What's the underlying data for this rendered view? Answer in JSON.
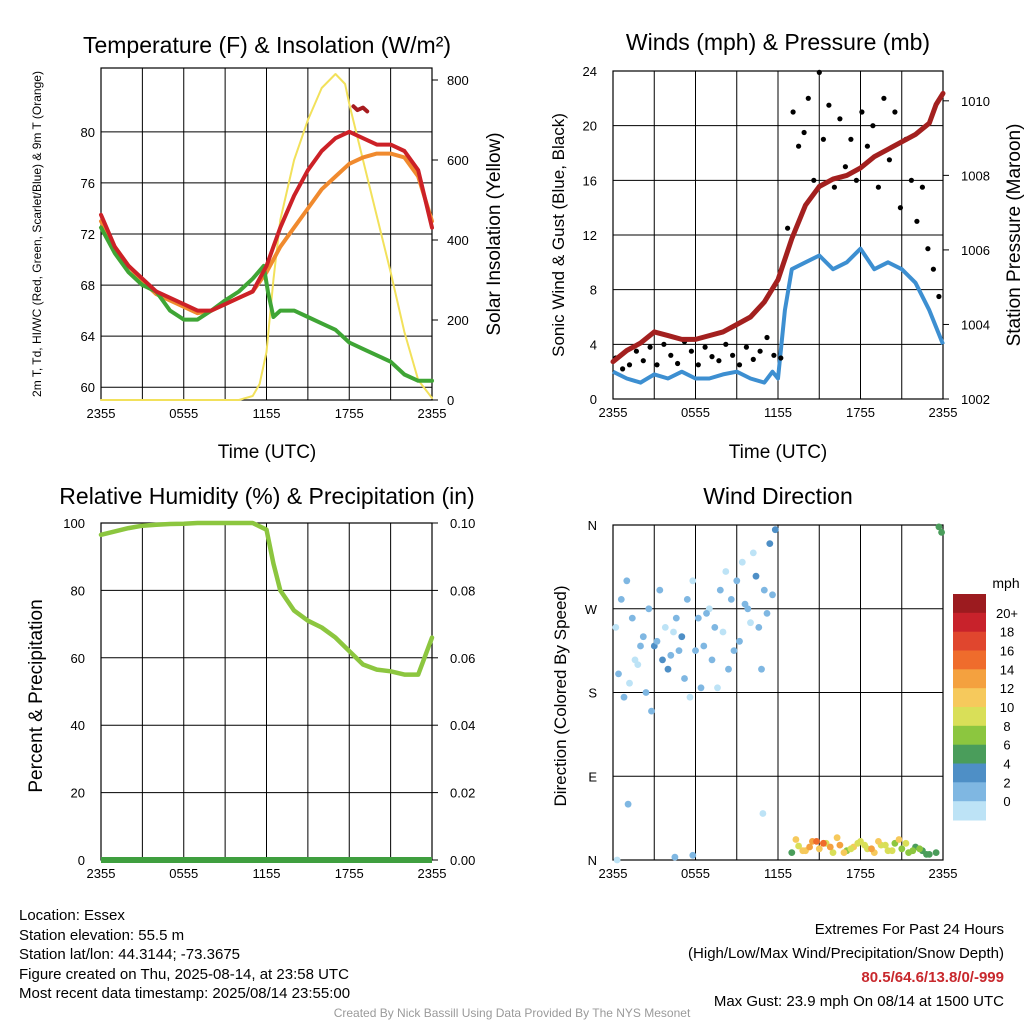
{
  "footer": {
    "location": "Location: Essex",
    "elevation": "Station elevation: 55.5 m",
    "latlon": "Station lat/lon: 44.3144; -73.3675",
    "created": "Figure created on Thu, 2025-08-14, at 23:58 UTC",
    "recent": "Most recent data timestamp: 2025/08/14 23:55:00",
    "extremes_title": "Extremes For Past 24 Hours",
    "extremes_subtitle": "(High/Low/Max Wind/Precipitation/Snow Depth)",
    "extremes_values": "80.5/64.6/13.8/0/-999",
    "max_gust": "Max Gust: 23.9 mph On 08/14 at 1500 UTC",
    "credit": "Created By Nick Bassill Using Data Provided By The NYS Mesonet"
  },
  "colors": {
    "temp_red": "#cc2127",
    "heat_index": "#a71b1f",
    "dewpoint_green": "#3fa535",
    "temp9m_orange": "#f08a2e",
    "insolation_yellow": "#f2e15b",
    "wind_blue": "#3d8fd1",
    "gust_black": "#000000",
    "pressure_maroon": "#a3201f",
    "rh_green": "#8cc63f",
    "precip_green": "#3f9f3f"
  },
  "chart_data": [
    {
      "type": "line",
      "title": "Temperature (F) & Insolation (W/m²)",
      "xlabel": "Time (UTC)",
      "ylabel": "2m T, Td, HI/WC (Red, Green, Scarlet/Blue) & 9m T (Orange)",
      "ylabel_right": "Solar Insolation (Yellow)",
      "x_ticks": [
        "2355",
        "0555",
        "1155",
        "1755",
        "2355"
      ],
      "x_hours": [
        0,
        6,
        12,
        18,
        24
      ],
      "ylim": [
        59,
        85
      ],
      "y_ticks": [
        60,
        64,
        68,
        72,
        76,
        80
      ],
      "ylim_right": [
        0,
        830
      ],
      "y_ticks_right": [
        0,
        200,
        400,
        600,
        800
      ],
      "grid": true,
      "series": [
        {
          "name": "2m T",
          "axis": "left",
          "color": "temp_red",
          "x": [
            0,
            1,
            2,
            3,
            4,
            5,
            6,
            7,
            8,
            9,
            10,
            11,
            12,
            13,
            14,
            15,
            16,
            17,
            18,
            19,
            20,
            21,
            22,
            23,
            24
          ],
          "y": [
            73.5,
            71,
            69.5,
            68.5,
            67.5,
            67,
            66.5,
            66,
            66,
            66.5,
            67,
            67.5,
            69.5,
            72.5,
            75,
            77,
            78.5,
            79.5,
            80,
            79.5,
            79,
            79,
            78.5,
            77,
            72.5
          ]
        },
        {
          "name": "9m T",
          "axis": "left",
          "color": "temp9m_orange",
          "x": [
            0,
            1,
            2,
            3,
            4,
            5,
            6,
            7,
            8,
            9,
            10,
            11,
            12,
            13,
            14,
            15,
            16,
            17,
            18,
            19,
            20,
            21,
            22,
            23,
            24
          ],
          "y": [
            73,
            71,
            69.5,
            68.3,
            67.3,
            66.8,
            66.3,
            65.8,
            66,
            66.5,
            67,
            67.5,
            69,
            71,
            72.5,
            74,
            75.5,
            76.5,
            77.5,
            78,
            78.3,
            78.3,
            78,
            76.5,
            73
          ]
        },
        {
          "name": "Td",
          "axis": "left",
          "color": "dewpoint_green",
          "x": [
            0,
            1,
            2,
            3,
            4,
            5,
            6,
            7,
            8,
            9,
            10,
            11,
            11.8,
            12.1,
            12.5,
            13,
            14,
            15,
            16,
            17,
            18,
            19,
            20,
            21,
            22,
            23,
            24
          ],
          "y": [
            72.5,
            70.5,
            69,
            68,
            67.5,
            66,
            65.3,
            65.3,
            66,
            66.8,
            67.5,
            68.5,
            69.5,
            67.5,
            65.5,
            66,
            66,
            65.5,
            65,
            64.5,
            63.5,
            63,
            62.5,
            62,
            61,
            60.5,
            60.5
          ]
        },
        {
          "name": "HI",
          "axis": "left",
          "color": "heat_index",
          "x": [
            18.3,
            18.6,
            19,
            19.3
          ],
          "y": [
            82,
            81.7,
            81.9,
            81.6
          ]
        },
        {
          "name": "Solar Insolation",
          "axis": "right",
          "color": "insolation_yellow",
          "x": [
            0,
            10,
            11,
            11.5,
            12,
            12.5,
            13,
            14,
            15,
            16,
            17,
            17.7,
            18,
            19,
            20,
            21,
            22,
            23,
            24
          ],
          "y": [
            0,
            0,
            10,
            40,
            120,
            300,
            450,
            600,
            700,
            780,
            815,
            790,
            740,
            600,
            460,
            320,
            170,
            50,
            5
          ]
        }
      ]
    },
    {
      "type": "scatter",
      "title": "Winds (mph) & Pressure (mb)",
      "xlabel": "Time (UTC)",
      "ylabel": "Sonic Wind & Gust (Blue, Black)",
      "ylabel_right": "Station Pressure (Maroon)",
      "x_ticks": [
        "2355",
        "0555",
        "1155",
        "1755",
        "2355"
      ],
      "x_hours": [
        0,
        6,
        12,
        18,
        24
      ],
      "ylim": [
        0,
        24
      ],
      "y_ticks": [
        0,
        4,
        8,
        12,
        16,
        20,
        24
      ],
      "ylim_right": [
        1002,
        1010.8
      ],
      "y_ticks_right": [
        1002,
        1004,
        1006,
        1008,
        1010
      ],
      "grid": true,
      "series": [
        {
          "name": "Sonic Wind",
          "axis": "left",
          "color": "wind_blue",
          "x": [
            0,
            1,
            2,
            3,
            4,
            5,
            6,
            7,
            8,
            9,
            10,
            11,
            11.6,
            12,
            12.5,
            13,
            14,
            15,
            16,
            17,
            18,
            19,
            20,
            21,
            22,
            23,
            24
          ],
          "y": [
            2,
            1.5,
            1.2,
            1.8,
            1.5,
            2,
            1.5,
            1.5,
            1.8,
            2,
            1.5,
            1.2,
            2,
            1.5,
            6.5,
            9.5,
            10,
            10.5,
            9.5,
            10,
            11,
            9.5,
            10,
            9.5,
            8.5,
            6.5,
            4
          ]
        },
        {
          "name": "Gust",
          "axis": "left",
          "color": "gust_black",
          "x": [
            0.2,
            0.7,
            1.2,
            1.7,
            2.2,
            2.7,
            3.2,
            3.7,
            4.2,
            4.7,
            5.2,
            5.7,
            6.2,
            6.7,
            7.2,
            7.7,
            8.2,
            8.7,
            9.2,
            9.7,
            10.2,
            10.7,
            11.2,
            11.7,
            12.2,
            12.7,
            13.1,
            13.5,
            13.9,
            14.2,
            14.6,
            15,
            15.3,
            15.7,
            16.1,
            16.5,
            16.9,
            17.3,
            17.7,
            18.1,
            18.5,
            18.9,
            19.3,
            19.7,
            20.1,
            20.5,
            20.9,
            21.3,
            21.7,
            22.1,
            22.5,
            22.9,
            23.3,
            23.7
          ],
          "y": [
            3,
            2.2,
            2.5,
            3.5,
            2.8,
            3.8,
            2.5,
            4,
            3.2,
            2.6,
            4.2,
            3.5,
            2.5,
            3.8,
            3.1,
            2.8,
            4,
            3.2,
            2.5,
            3.8,
            2.9,
            3.5,
            4.5,
            3.2,
            3,
            12.5,
            21,
            18.5,
            19.5,
            22,
            16,
            23.9,
            19,
            21.5,
            15.5,
            20.5,
            17,
            19,
            16,
            21,
            18.5,
            20,
            15.5,
            22,
            17.5,
            21,
            14,
            19,
            16,
            13,
            15.5,
            11,
            9.5,
            7.5
          ]
        },
        {
          "name": "Station Pressure",
          "axis": "right",
          "color": "pressure_maroon",
          "x": [
            0,
            1,
            2,
            3,
            4,
            5,
            6,
            7,
            8,
            9,
            10,
            11,
            12,
            13,
            14,
            15,
            16,
            17,
            18,
            19,
            20,
            21,
            22,
            23,
            23.5,
            24
          ],
          "y": [
            1003,
            1003.3,
            1003.5,
            1003.8,
            1003.7,
            1003.6,
            1003.6,
            1003.7,
            1003.8,
            1004,
            1004.2,
            1004.6,
            1005.2,
            1006.3,
            1007.2,
            1007.7,
            1007.9,
            1008,
            1008.2,
            1008.5,
            1008.7,
            1008.9,
            1009.1,
            1009.4,
            1009.9,
            1010.2
          ]
        }
      ]
    },
    {
      "type": "line",
      "title": "Relative Humidity (%) & Precipitation (in)",
      "xlabel": "",
      "ylabel": "Percent & Precipitation",
      "x_ticks": [
        "2355",
        "0555",
        "1155",
        "1755",
        "2355"
      ],
      "x_hours": [
        0,
        6,
        12,
        18,
        24
      ],
      "ylim": [
        0,
        100
      ],
      "y_ticks": [
        0,
        20,
        40,
        60,
        80,
        100
      ],
      "ylim_right": [
        0,
        0.1
      ],
      "y_ticks_right_labels": [
        "0.00",
        "0.02",
        "0.04",
        "0.06",
        "0.08",
        "0.10"
      ],
      "grid": true,
      "series": [
        {
          "name": "RH",
          "axis": "left",
          "color": "rh_green",
          "x": [
            0,
            1,
            2,
            3,
            4,
            5,
            6,
            7,
            8,
            9,
            10,
            11,
            12,
            12.5,
            13,
            14,
            15,
            16,
            17,
            18,
            19,
            20,
            21,
            22,
            23,
            24
          ],
          "y": [
            96.5,
            97.5,
            98.5,
            99.2,
            99.5,
            99.7,
            99.8,
            100,
            100,
            100,
            100,
            100,
            98,
            88,
            80,
            74,
            71,
            69,
            66,
            62,
            58,
            56.5,
            56,
            55,
            55,
            66
          ]
        },
        {
          "name": "Precipitation",
          "axis": "right",
          "color": "precip_green",
          "x": [
            0,
            24
          ],
          "y": [
            0,
            0
          ]
        }
      ]
    },
    {
      "type": "scatter",
      "title": "Wind Direction",
      "ylabel": "Direction (Colored By Speed)",
      "x_ticks": [
        "2355",
        "0555",
        "1155",
        "1755",
        "2355"
      ],
      "x_hours": [
        0,
        6,
        12,
        18,
        24
      ],
      "y_ticks": [
        "N",
        "E",
        "S",
        "W",
        "N"
      ],
      "ylim": [
        0,
        360
      ],
      "grid": true,
      "colorbar": {
        "units": "mph",
        "labels": [
          "20+",
          "18",
          "16",
          "14",
          "12",
          "10",
          "8",
          "6",
          "4",
          "2",
          "0"
        ],
        "colors": [
          "#9c1b1f",
          "#c8222b",
          "#e0462e",
          "#ef6c2c",
          "#f4a13f",
          "#f6c95c",
          "#d9df58",
          "#8cc63f",
          "#4a9d5b",
          "#4e8fc6",
          "#7fb7e2",
          "#bde3f6"
        ]
      },
      "series": [
        {
          "name": "Direction",
          "axis": "left",
          "x": [
            0.2,
            0.6,
            1,
            1.4,
            1.8,
            2.2,
            2.6,
            3,
            3.4,
            3.8,
            4.2,
            4.6,
            5,
            5.4,
            5.8,
            6.2,
            6.6,
            7,
            7.4,
            7.8,
            8.2,
            8.6,
            9,
            9.4,
            9.8,
            10.2,
            10.6,
            11,
            11.4,
            11.8,
            0.4,
            1.2,
            2,
            2.8,
            3.6,
            4.4,
            5.2,
            6,
            6.8,
            7.6,
            8.4,
            9.2,
            10,
            10.8,
            11.6,
            0.8,
            1.6,
            2.4,
            3.2,
            4,
            4.8,
            5.6,
            6.4,
            7.2,
            8,
            8.8,
            9.6,
            10.4,
            11.2,
            1.1,
            5.8,
            10.9,
            0.3,
            4.5
          ],
          "y": [
            250,
            280,
            300,
            260,
            210,
            240,
            270,
            230,
            290,
            250,
            220,
            260,
            240,
            280,
            300,
            260,
            230,
            270,
            250,
            290,
            310,
            280,
            300,
            320,
            270,
            330,
            250,
            290,
            340,
            355,
            200,
            190,
            230,
            160,
            215,
            245,
            195,
            225,
            265,
            185,
            205,
            235,
            255,
            205,
            285,
            175,
            215,
            180,
            235,
            205,
            225,
            175,
            185,
            215,
            245,
            225,
            275,
            305,
            265,
            60,
            5,
            50,
            0,
            3
          ],
          "speed": [
            1,
            2,
            3,
            2,
            1,
            3,
            2,
            4,
            2,
            1,
            3,
            2,
            4,
            2,
            1,
            3,
            2,
            1,
            3,
            2,
            1,
            2,
            3,
            1,
            2,
            1,
            2,
            3,
            4,
            5,
            2,
            1,
            3,
            2,
            4,
            1,
            2,
            3,
            2,
            1,
            3,
            2,
            1,
            2,
            3,
            2,
            1,
            3,
            2,
            4,
            2,
            1,
            3,
            2,
            1,
            2,
            3,
            5,
            2,
            3,
            2,
            1,
            1,
            2
          ]
        },
        {
          "name": "Direction",
          "axis": "left",
          "x": [
            13,
            13.5,
            14,
            14.5,
            15,
            15.5,
            16,
            16.5,
            17,
            17.5,
            18,
            18.5,
            19,
            19.5,
            20,
            20.5,
            21,
            21.5,
            22,
            22.5,
            23,
            23.5,
            13.3,
            14.3,
            15.3,
            16.3,
            17.3,
            18.3,
            19.3,
            20.3,
            21.3,
            22.3,
            13.8,
            14.8,
            15.8,
            16.8,
            17.8,
            18.8,
            19.8,
            20.8,
            21.8,
            22.8,
            23.7,
            23.9
          ],
          "y": [
            8,
            15,
            10,
            20,
            12,
            18,
            8,
            16,
            10,
            14,
            20,
            12,
            8,
            16,
            10,
            18,
            12,
            8,
            14,
            10,
            6,
            8,
            22,
            14,
            18,
            24,
            12,
            16,
            20,
            10,
            18,
            12,
            10,
            20,
            14,
            8,
            18,
            12,
            16,
            22,
            10,
            6,
            358,
            352
          ],
          "speed": [
            7,
            11,
            13,
            15,
            12,
            11,
            10,
            14,
            9,
            12,
            11,
            10,
            12,
            11,
            10,
            9,
            8,
            9,
            7,
            6,
            6,
            6,
            12,
            14,
            16,
            12,
            10,
            11,
            12,
            10,
            11,
            9,
            13,
            17,
            15,
            12,
            11,
            14,
            10,
            12,
            8,
            7,
            6,
            6
          ]
        }
      ]
    }
  ]
}
